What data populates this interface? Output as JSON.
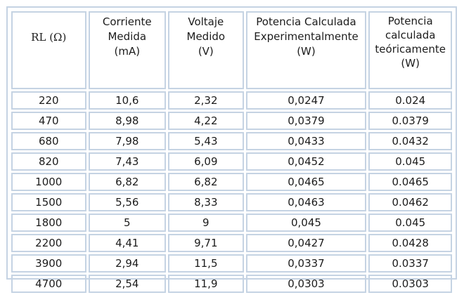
{
  "table": {
    "headers": [
      {
        "key": "rl",
        "lines": [
          "RL (Ω)"
        ]
      },
      {
        "key": "current",
        "lines": [
          "Corriente",
          "Medida",
          "(mA)"
        ]
      },
      {
        "key": "voltage",
        "lines": [
          "Voltaje",
          "Medido",
          "(V)"
        ]
      },
      {
        "key": "power_exp",
        "lines": [
          "Potencia Calculada",
          "Experimentalmente",
          "(W)"
        ]
      },
      {
        "key": "power_theo",
        "lines": [
          "Potencia",
          "calculada",
          "teóricamente",
          "(W)"
        ]
      }
    ],
    "rows": [
      [
        "220",
        "10,6",
        "2,32",
        "0,0247",
        "0.024"
      ],
      [
        "470",
        "8,98",
        "4,22",
        "0,0379",
        "0.0379"
      ],
      [
        "680",
        "7,98",
        "5,43",
        "0,0433",
        "0.0432"
      ],
      [
        "820",
        "7,43",
        "6,09",
        "0,0452",
        "0.045"
      ],
      [
        "1000",
        "6,82",
        "6,82",
        "0,0465",
        "0.0465"
      ],
      [
        "1500",
        "5,56",
        "8,33",
        "0,0463",
        "0.0462"
      ],
      [
        "1800",
        "5",
        "9",
        "0,045",
        "0.045"
      ],
      [
        "2200",
        "4,41",
        "9,71",
        "0,0427",
        "0.0428"
      ],
      [
        "3900",
        "2,94",
        "11,5",
        "0,0337",
        "0.0337"
      ],
      [
        "4700",
        "2,54",
        "11,9",
        "0,0303",
        "0.0303"
      ]
    ]
  },
  "colors": {
    "border": "#c5d3e3",
    "text": "#1c1c1c",
    "background": "#ffffff"
  }
}
